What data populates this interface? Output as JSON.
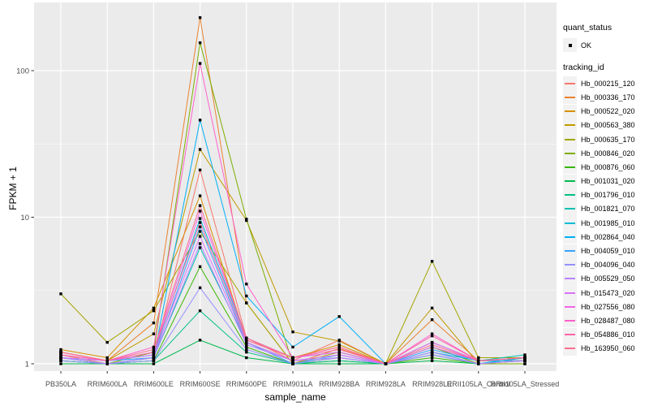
{
  "chart_data": {
    "type": "line",
    "title": "",
    "xlabel": "sample_name",
    "ylabel": "FPKM + 1",
    "y_scale": "log10",
    "ylim": [
      0.93,
      280
    ],
    "y_ticks": [
      1,
      10,
      100
    ],
    "y_tick_labels": [
      "1",
      "10",
      "100"
    ],
    "y_minor_gridlines": [
      3.1623,
      31.623
    ],
    "grid": "on",
    "x_categories": [
      "PB350LA",
      "RRIM600LA",
      "RRIM600LE",
      "RRIM600SE",
      "RRIM600PE",
      "RRIM901LA",
      "RRIM928BA",
      "RRIM928LA",
      "RRIM928LE",
      "RRII105LA_Control",
      "RRII105LA_Stressed"
    ],
    "legend": {
      "position": "right",
      "quant_status_title": "quant_status",
      "quant_status_items": [
        {
          "label": "OK",
          "marker": "black-point"
        }
      ],
      "tracking_title": "tracking_id"
    },
    "colors": {
      "panel_bg": "#EBEBEB",
      "grid": "#FFFFFF",
      "axis_text": "#4D4D4D",
      "tick_mark": "#333333",
      "point": "#000000",
      "legend_key_bg": "#F2F2F2"
    },
    "series": [
      {
        "name": "Hb_000215_120",
        "color": "#F8766D",
        "values": [
          1.15,
          1.0,
          1.1,
          21,
          1.5,
          1.05,
          1.45,
          1.0,
          1.15,
          1.0,
          1.05
        ]
      },
      {
        "name": "Hb_000336_170",
        "color": "#EA8331",
        "values": [
          1.2,
          1.05,
          1.9,
          230,
          2.6,
          1.0,
          1.27,
          1.0,
          2.0,
          1.05,
          1.05
        ]
      },
      {
        "name": "Hb_000522_020",
        "color": "#D89000",
        "values": [
          1.25,
          1.1,
          2.4,
          14,
          1.45,
          1.1,
          1.35,
          1.0,
          1.3,
          1.05,
          1.05
        ]
      },
      {
        "name": "Hb_000563_380",
        "color": "#C09B00",
        "values": [
          1.2,
          1.05,
          1.6,
          29,
          9.5,
          1.65,
          1.43,
          1.0,
          2.4,
          1.0,
          1.0
        ]
      },
      {
        "name": "Hb_000635_170",
        "color": "#A3A500",
        "values": [
          3.0,
          1.4,
          2.3,
          8.0,
          2.6,
          1.0,
          1.2,
          1.0,
          5.0,
          1.1,
          1.1
        ]
      },
      {
        "name": "Hb_000846_020",
        "color": "#7CAE00",
        "values": [
          1.1,
          1.0,
          1.2,
          155,
          9.7,
          1.0,
          1.1,
          1.0,
          1.3,
          1.0,
          1.0
        ]
      },
      {
        "name": "Hb_000876_060",
        "color": "#39B600",
        "values": [
          1.05,
          1.0,
          1.05,
          4.6,
          1.3,
          1.0,
          1.05,
          1.0,
          1.1,
          1.0,
          1.05
        ]
      },
      {
        "name": "Hb_001031_020",
        "color": "#00BB4E",
        "values": [
          1.0,
          1.0,
          1.0,
          1.45,
          1.1,
          1.0,
          1.0,
          1.0,
          1.05,
          1.0,
          1.1
        ]
      },
      {
        "name": "Hb_001796_010",
        "color": "#00C087",
        "values": [
          1.05,
          1.0,
          1.05,
          2.3,
          1.2,
          1.0,
          1.05,
          1.0,
          1.15,
          1.0,
          1.1
        ]
      },
      {
        "name": "Hb_001821_070",
        "color": "#00C0B2",
        "values": [
          1.1,
          1.0,
          1.1,
          6.2,
          1.4,
          1.05,
          1.1,
          1.0,
          1.4,
          1.05,
          1.15
        ]
      },
      {
        "name": "Hb_001985_010",
        "color": "#00BCD8",
        "values": [
          1.1,
          1.05,
          1.15,
          9.8,
          1.5,
          1.1,
          1.2,
          1.0,
          1.2,
          1.05,
          1.1
        ]
      },
      {
        "name": "Hb_002864_040",
        "color": "#00B0F6",
        "values": [
          1.1,
          1.0,
          1.1,
          46,
          2.9,
          1.3,
          2.1,
          1.0,
          1.2,
          1.0,
          1.1
        ]
      },
      {
        "name": "Hb_004059_010",
        "color": "#35A2FF",
        "values": [
          1.1,
          1.05,
          1.1,
          8.6,
          1.4,
          1.0,
          1.15,
          1.0,
          1.25,
          1.05,
          1.05
        ]
      },
      {
        "name": "Hb_004096_040",
        "color": "#9590FF",
        "values": [
          1.05,
          1.0,
          1.05,
          3.3,
          1.25,
          1.0,
          1.1,
          1.0,
          1.15,
          1.0,
          1.05
        ]
      },
      {
        "name": "Hb_005529_050",
        "color": "#B983FF",
        "values": [
          1.1,
          1.0,
          1.1,
          6.6,
          1.35,
          1.05,
          1.1,
          1.0,
          1.2,
          1.0,
          1.05
        ]
      },
      {
        "name": "Hb_015473_020",
        "color": "#DC71FA",
        "values": [
          1.1,
          1.05,
          1.15,
          7.4,
          1.4,
          1.05,
          1.15,
          1.0,
          1.3,
          1.05,
          1.1
        ]
      },
      {
        "name": "Hb_027556_080",
        "color": "#F265E8",
        "values": [
          1.15,
          1.05,
          1.2,
          11,
          1.5,
          1.1,
          1.2,
          1.0,
          1.4,
          1.05,
          1.1
        ]
      },
      {
        "name": "Hb_028487_080",
        "color": "#FF61CC",
        "values": [
          1.2,
          1.05,
          1.3,
          112,
          3.5,
          1.1,
          1.3,
          1.0,
          1.6,
          1.05,
          1.1
        ]
      },
      {
        "name": "Hb_054886_010",
        "color": "#FF65AA",
        "values": [
          1.15,
          1.05,
          1.2,
          9.2,
          1.45,
          1.1,
          1.25,
          1.0,
          1.55,
          1.05,
          1.1
        ]
      },
      {
        "name": "Hb_163950_060",
        "color": "#FF6C91",
        "values": [
          1.2,
          1.05,
          1.25,
          12,
          1.5,
          1.1,
          1.3,
          1.0,
          1.35,
          1.05,
          1.1
        ]
      }
    ]
  }
}
